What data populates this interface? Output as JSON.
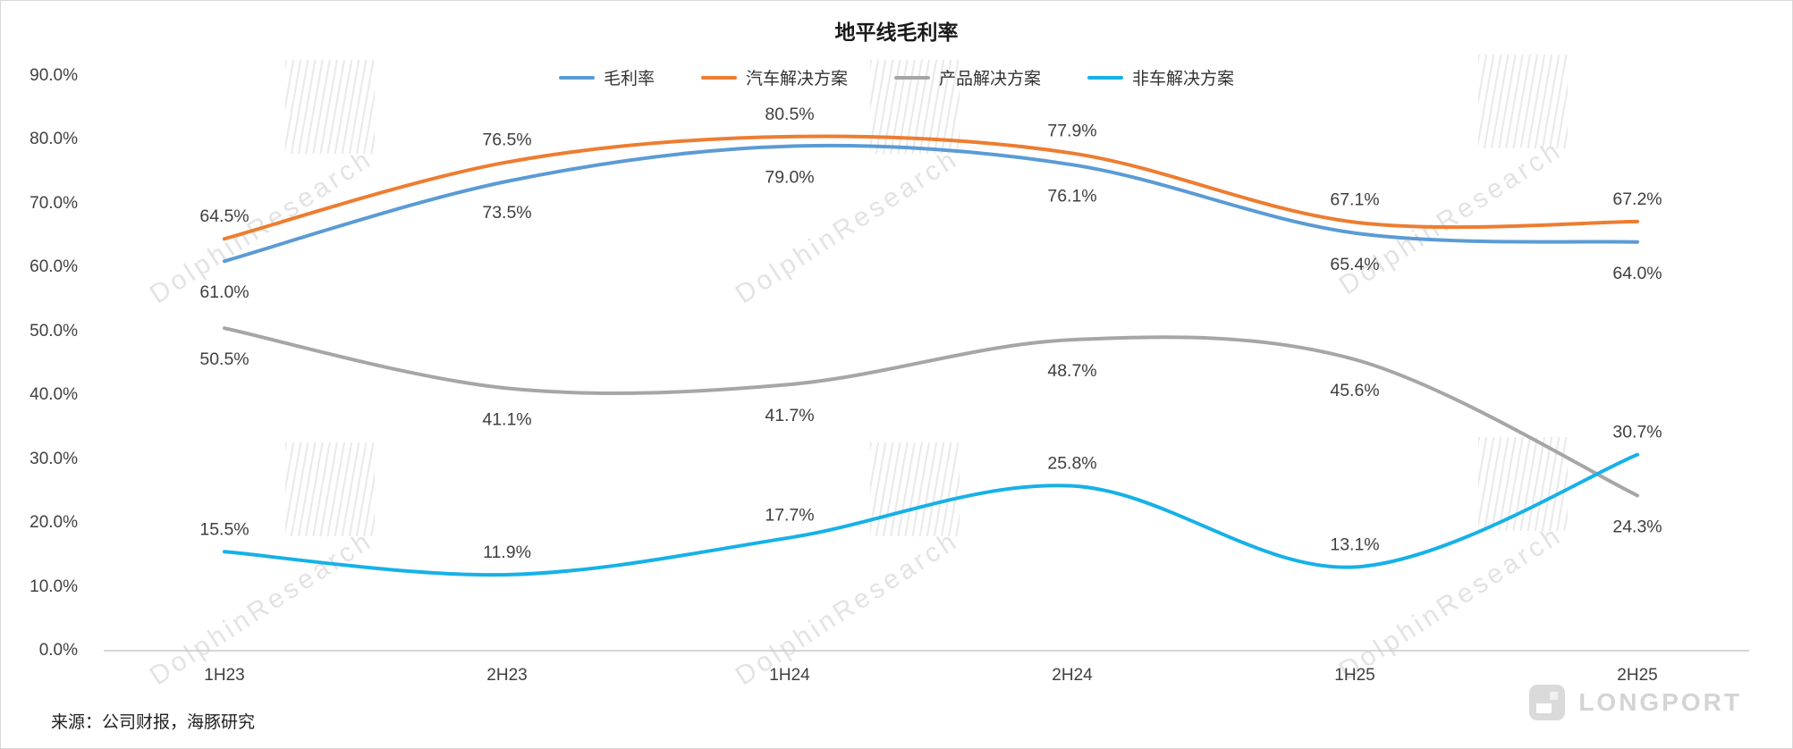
{
  "title": "地平线毛利率",
  "source_note": "来源：公司财报，海豚研究",
  "watermark_text": "DolphinResearch",
  "brand_logo_text": "LONGPORT",
  "colors": {
    "axis_line": "#c9c9c9",
    "label_text": "#3f3f3f",
    "watermark": "#e3e3e3"
  },
  "chart_data": {
    "type": "line",
    "title": "地平线毛利率",
    "categories": [
      "1H23",
      "2H23",
      "1H24",
      "2H24",
      "1H25",
      "2H25"
    ],
    "series": [
      {
        "name": "毛利率",
        "color": "#5B9BD5",
        "label_position": "below",
        "values": [
          61.0,
          73.5,
          79.0,
          76.1,
          65.4,
          64.0
        ]
      },
      {
        "name": "汽车解决方案",
        "color": "#ED7D31",
        "label_position": "above",
        "values": [
          64.5,
          76.5,
          80.5,
          77.9,
          67.1,
          67.2
        ]
      },
      {
        "name": "产品解决方案",
        "color": "#A6A6A6",
        "label_position": "below",
        "values": [
          50.5,
          41.1,
          41.7,
          48.7,
          45.6,
          24.3
        ]
      },
      {
        "name": "非车解决方案",
        "color": "#16B1E7",
        "label_position": "above",
        "values": [
          15.5,
          11.9,
          17.7,
          25.8,
          13.1,
          30.7
        ]
      }
    ],
    "xlabel": "",
    "ylabel": "",
    "ylim": [
      0,
      90
    ],
    "ytick_step": 10,
    "ytick_format": "percent_one_decimal",
    "grid": false,
    "smooth": true,
    "legend_position": "top"
  }
}
